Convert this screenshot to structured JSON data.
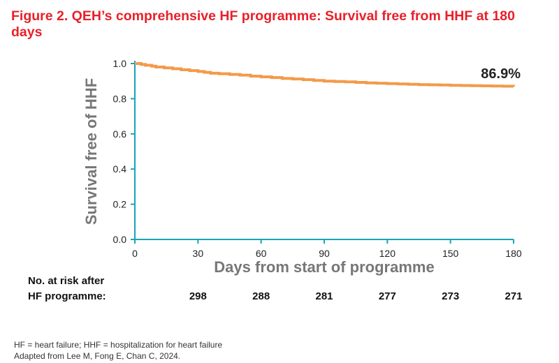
{
  "title": "Figure 2. QEH’s comprehensive HF programme: Survival free from HHF at 180 days",
  "chart_data": {
    "type": "line",
    "title": "Figure 2. QEH’s comprehensive HF programme: Survival free from HHF at 180 days",
    "xlabel": "Days from start of programme",
    "ylabel": "Survival free of HHF",
    "xlim": [
      0,
      180
    ],
    "ylim": [
      0.0,
      1.0
    ],
    "x_ticks": [
      "0",
      "30",
      "60",
      "90",
      "120",
      "150",
      "180"
    ],
    "y_ticks": [
      "0.0",
      "0.2",
      "0.4",
      "0.6",
      "0.8",
      "1.0"
    ],
    "grid": false,
    "series": [
      {
        "color": "#f39a4a",
        "x": [
          0,
          3,
          5,
          8,
          10,
          14,
          18,
          22,
          26,
          30,
          33,
          36,
          40,
          45,
          50,
          55,
          60,
          65,
          70,
          75,
          80,
          85,
          90,
          95,
          100,
          105,
          110,
          115,
          120,
          125,
          130,
          135,
          140,
          145,
          150,
          155,
          160,
          165,
          170,
          175,
          180
        ],
        "y": [
          1.0,
          0.995,
          0.99,
          0.985,
          0.98,
          0.975,
          0.97,
          0.965,
          0.96,
          0.955,
          0.95,
          0.945,
          0.942,
          0.938,
          0.934,
          0.928,
          0.924,
          0.92,
          0.915,
          0.912,
          0.908,
          0.904,
          0.9,
          0.898,
          0.896,
          0.893,
          0.89,
          0.888,
          0.886,
          0.884,
          0.882,
          0.88,
          0.879,
          0.878,
          0.876,
          0.875,
          0.874,
          0.873,
          0.872,
          0.871,
          0.869
        ]
      }
    ],
    "annotation": "86.9%"
  },
  "risk_table": {
    "label_line1": "No. at risk after",
    "label_line2": "HF programme:",
    "values": [
      "298",
      "288",
      "281",
      "277",
      "273",
      "271"
    ]
  },
  "footnote_line1": "HF = heart failure; HHF = hospitalization for heart failure",
  "footnote_line2": "Adapted from Lee M, Fong E, Chan C, 2024."
}
